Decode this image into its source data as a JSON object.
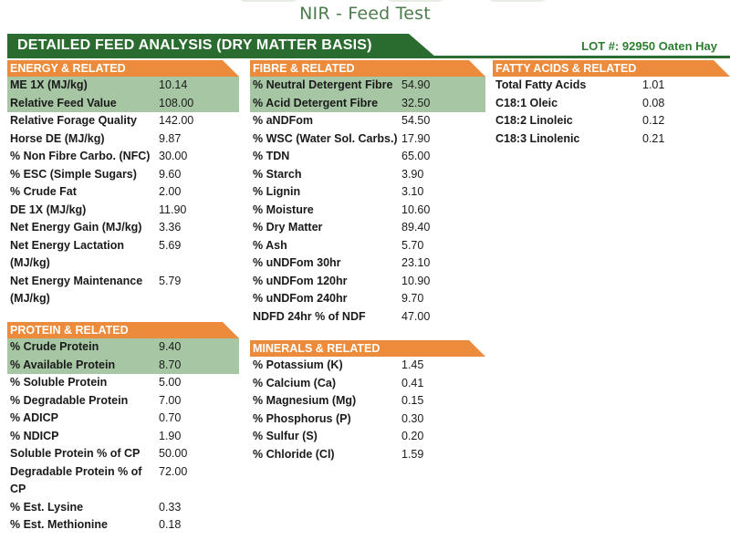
{
  "header": {
    "page_title": "NIR - Feed Test",
    "banner_title": "DETAILED FEED ANALYSIS (DRY MATTER BASIS)",
    "lot": "LOT #: 92950 Oaten Hay"
  },
  "colors": {
    "banner_green": "#2a6c2f",
    "section_orange": "#ec8b3b",
    "highlight_green": "#a7c7a4",
    "title_green": "#4d7d4f"
  },
  "energy": {
    "title": "ENERGY & RELATED",
    "rows": [
      {
        "label": "ME 1X (MJ/kg)",
        "value": "10.14"
      },
      {
        "label": "Relative Feed Value",
        "value": "108.00"
      },
      {
        "label": "Relative Forage Quality",
        "value": "142.00"
      },
      {
        "label": "Horse DE (MJ/kg)",
        "value": "9.87"
      },
      {
        "label": "% Non Fibre Carbo. (NFC)",
        "value": "30.00"
      },
      {
        "label": "% ESC (Simple Sugars)",
        "value": "9.60"
      },
      {
        "label": "% Crude Fat",
        "value": "2.00"
      },
      {
        "label": "DE 1X (MJ/kg)",
        "value": "11.90"
      },
      {
        "label": "Net Energy Gain (MJ/kg)",
        "value": "3.36"
      },
      {
        "label": "Net Energy Lactation (MJ/kg)",
        "value": "5.69"
      },
      {
        "label": "Net Energy Maintenance (MJ/kg)",
        "value": "5.79"
      }
    ]
  },
  "fibre": {
    "title": "FIBRE & RELATED",
    "rows": [
      {
        "label": "% Neutral Detergent Fibre",
        "value": "54.90"
      },
      {
        "label": "% Acid Detergent Fibre",
        "value": "32.50"
      },
      {
        "label": "% aNDFom",
        "value": "54.50"
      },
      {
        "label": "% WSC (Water Sol. Carbs.)",
        "value": "17.90"
      },
      {
        "label": "% TDN",
        "value": "65.00"
      },
      {
        "label": "% Starch",
        "value": "3.90"
      },
      {
        "label": "% Lignin",
        "value": "3.10"
      },
      {
        "label": "% Moisture",
        "value": "10.60"
      },
      {
        "label": "% Dry Matter",
        "value": "89.40"
      },
      {
        "label": "% Ash",
        "value": "5.70"
      },
      {
        "label": "% uNDFom 30hr",
        "value": "23.10"
      },
      {
        "label": "% uNDFom 120hr",
        "value": "10.90"
      },
      {
        "label": "% uNDFom 240hr",
        "value": "9.70"
      },
      {
        "label": "NDFD 24hr % of NDF",
        "value": "47.00"
      }
    ]
  },
  "fatty": {
    "title": "FATTY ACIDS & RELATED",
    "rows": [
      {
        "label": "Total Fatty Acids",
        "value": "1.01"
      },
      {
        "label": "C18:1 Oleic",
        "value": "0.08"
      },
      {
        "label": "C18:2 Linoleic",
        "value": "0.12"
      },
      {
        "label": "C18:3 Linolenic",
        "value": "0.21"
      }
    ]
  },
  "protein": {
    "title": "PROTEIN & RELATED",
    "rows": [
      {
        "label": "% Crude Protein",
        "value": "9.40"
      },
      {
        "label": "% Available Protein",
        "value": "8.70"
      },
      {
        "label": "% Soluble Protein",
        "value": "5.00"
      },
      {
        "label": "% Degradable Protein",
        "value": "7.00"
      },
      {
        "label": "% ADICP",
        "value": "0.70"
      },
      {
        "label": "% NDICP",
        "value": "1.90"
      },
      {
        "label": "Soluble Protein % of CP",
        "value": "50.00"
      },
      {
        "label": "Degradable Protein % of CP",
        "value": "72.00"
      },
      {
        "label": "% Est. Lysine",
        "value": "0.33"
      },
      {
        "label": "% Est. Methionine",
        "value": "0.18"
      }
    ]
  },
  "minerals": {
    "title": "MINERALS & RELATED",
    "rows": [
      {
        "label": "% Potassium (K)",
        "value": "1.45"
      },
      {
        "label": "% Calcium (Ca)",
        "value": "0.41"
      },
      {
        "label": "% Magnesium (Mg)",
        "value": "0.15"
      },
      {
        "label": "% Phosphorus (P)",
        "value": "0.30"
      },
      {
        "label": "% Sulfur (S)",
        "value": "0.20"
      },
      {
        "label": "% Chloride (Cl)",
        "value": "1.59"
      }
    ]
  }
}
